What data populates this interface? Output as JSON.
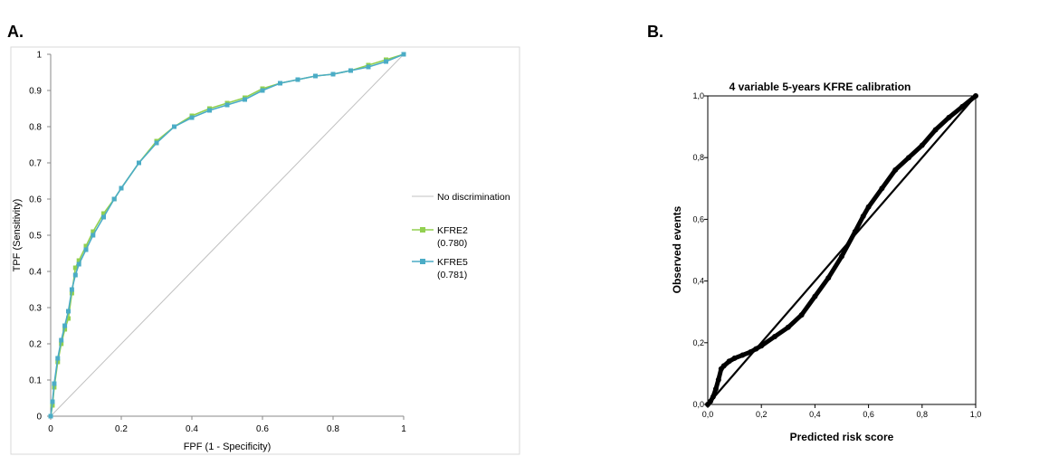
{
  "panels": {
    "a_label": "A.",
    "b_label": "B."
  },
  "chart_data": [
    {
      "type": "line",
      "title": "",
      "xlabel": "FPF (1 - Specificity)",
      "ylabel": "TPF (Sensitivity)",
      "xlim": [
        0,
        1
      ],
      "ylim": [
        0,
        1
      ],
      "xticks": [
        "0",
        "0.2",
        "0.4",
        "0.6",
        "0.8",
        "1"
      ],
      "yticks": [
        "0",
        "0.1",
        "0.2",
        "0.3",
        "0.4",
        "0.5",
        "0.6",
        "0.7",
        "0.8",
        "0.9",
        "1"
      ],
      "grid": false,
      "legend_position": "right",
      "series": [
        {
          "name": "No discrimination",
          "color": "#c0c0c0",
          "x": [
            0,
            1
          ],
          "y": [
            0,
            1
          ]
        },
        {
          "name": "KFRE2",
          "legend_lines": [
            "KFRE2",
            "(0.780)"
          ],
          "color": "#92d050",
          "marker": "square",
          "x": [
            0,
            0.005,
            0.01,
            0.02,
            0.03,
            0.04,
            0.05,
            0.06,
            0.07,
            0.08,
            0.1,
            0.12,
            0.15,
            0.18,
            0.2,
            0.25,
            0.3,
            0.35,
            0.4,
            0.45,
            0.5,
            0.55,
            0.6,
            0.65,
            0.7,
            0.75,
            0.8,
            0.85,
            0.9,
            0.95,
            1
          ],
          "y": [
            0,
            0.03,
            0.08,
            0.15,
            0.2,
            0.24,
            0.27,
            0.34,
            0.41,
            0.43,
            0.47,
            0.51,
            0.56,
            0.6,
            0.63,
            0.7,
            0.76,
            0.8,
            0.83,
            0.85,
            0.865,
            0.88,
            0.905,
            0.92,
            0.93,
            0.94,
            0.945,
            0.955,
            0.97,
            0.985,
            1
          ]
        },
        {
          "name": "KFRE5",
          "legend_lines": [
            "KFRE5",
            "(0.781)"
          ],
          "color": "#4bacc6",
          "marker": "square",
          "x": [
            0,
            0.005,
            0.01,
            0.02,
            0.03,
            0.04,
            0.05,
            0.06,
            0.07,
            0.08,
            0.1,
            0.12,
            0.15,
            0.18,
            0.2,
            0.25,
            0.3,
            0.35,
            0.4,
            0.45,
            0.5,
            0.55,
            0.6,
            0.65,
            0.7,
            0.75,
            0.8,
            0.85,
            0.9,
            0.95,
            1
          ],
          "y": [
            0,
            0.04,
            0.09,
            0.16,
            0.21,
            0.25,
            0.29,
            0.35,
            0.39,
            0.42,
            0.46,
            0.5,
            0.55,
            0.6,
            0.63,
            0.7,
            0.755,
            0.8,
            0.825,
            0.845,
            0.86,
            0.875,
            0.9,
            0.92,
            0.93,
            0.94,
            0.945,
            0.955,
            0.965,
            0.98,
            1
          ]
        }
      ]
    },
    {
      "type": "line",
      "title": "4 variable 5-years KFRE calibration",
      "xlabel": "Predicted risk score",
      "ylabel": "Observed events",
      "xlim": [
        0,
        1
      ],
      "ylim": [
        0,
        1
      ],
      "xticks": [
        "0,0",
        "0,2",
        "0,4",
        "0,6",
        "0,8",
        "1,0"
      ],
      "yticks": [
        "0,0",
        "0,2",
        "0,4",
        "0,6",
        "0,8",
        "1,0"
      ],
      "grid": false,
      "series": [
        {
          "color": "#000000",
          "x": [
            0,
            1
          ],
          "y": [
            0,
            1
          ]
        },
        {
          "color": "#000000",
          "marker": "circle",
          "x": [
            0,
            0.01,
            0.02,
            0.03,
            0.04,
            0.05,
            0.06,
            0.08,
            0.1,
            0.13,
            0.16,
            0.18,
            0.2,
            0.25,
            0.3,
            0.35,
            0.4,
            0.45,
            0.5,
            0.55,
            0.58,
            0.6,
            0.65,
            0.7,
            0.75,
            0.8,
            0.85,
            0.9,
            0.95,
            1
          ],
          "y": [
            0,
            0.01,
            0.025,
            0.05,
            0.08,
            0.115,
            0.125,
            0.14,
            0.15,
            0.16,
            0.17,
            0.18,
            0.19,
            0.22,
            0.25,
            0.29,
            0.35,
            0.41,
            0.48,
            0.56,
            0.61,
            0.64,
            0.7,
            0.76,
            0.8,
            0.84,
            0.89,
            0.93,
            0.965,
            1
          ]
        }
      ]
    }
  ]
}
